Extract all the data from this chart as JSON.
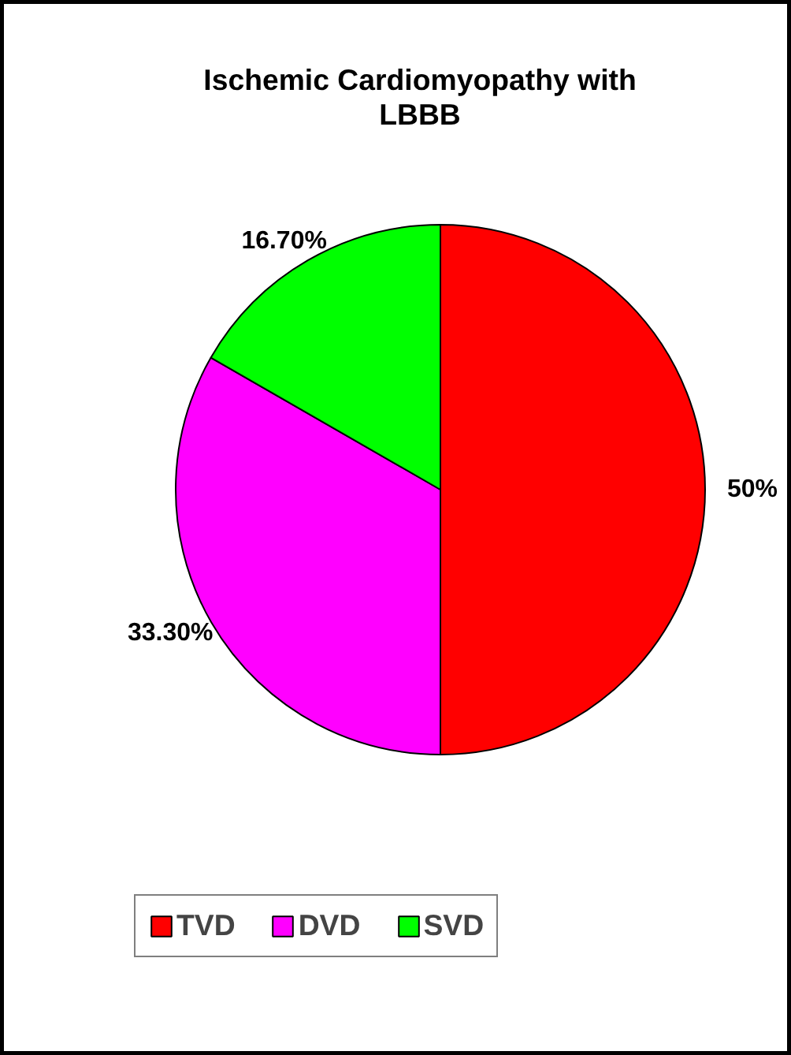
{
  "chart_data": {
    "type": "pie",
    "title": "Ischemic Cardiomyopathy with LBBB",
    "categories": [
      "TVD",
      "DVD",
      "SVD"
    ],
    "values": [
      50,
      33.3,
      16.7
    ],
    "value_labels": [
      "50%",
      "33.30%",
      "16.70%"
    ],
    "colors": [
      "#ff0000",
      "#ff00ff",
      "#00ff00"
    ],
    "legend": "bottom"
  }
}
